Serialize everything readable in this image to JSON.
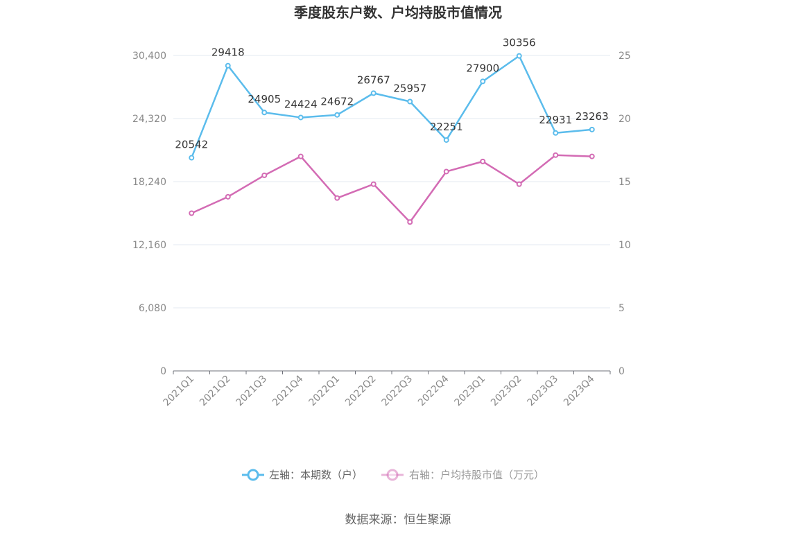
{
  "chart_data": {
    "type": "line",
    "title": "季度股东户数、户均持股市值情况",
    "categories": [
      "2021Q1",
      "2021Q2",
      "2021Q3",
      "2021Q4",
      "2022Q1",
      "2022Q2",
      "2022Q3",
      "2022Q4",
      "2023Q1",
      "2023Q2",
      "2023Q3",
      "2023Q4"
    ],
    "left_axis": {
      "ticks": [
        "0",
        "6,080",
        "12,160",
        "18,240",
        "24,320",
        "30,400"
      ],
      "min": 0,
      "max": 30400
    },
    "right_axis": {
      "ticks": [
        "0",
        "5",
        "10",
        "15",
        "20",
        "25"
      ],
      "min": 0,
      "max": 25
    },
    "series": [
      {
        "name": "左轴：本期数（户）",
        "axis": "left",
        "color": "#5bbcec",
        "values": [
          20542,
          29418,
          24905,
          24424,
          24672,
          26767,
          25957,
          22251,
          27900,
          30356,
          22931,
          23263
        ],
        "labels": [
          "20542",
          "29418",
          "24905",
          "24424",
          "24672",
          "26767",
          "25957",
          "22251",
          "27900",
          "30356",
          "22931",
          "23263"
        ]
      },
      {
        "name": "右轴：户均持股市值（万元）",
        "axis": "right",
        "color": "#d36bb4",
        "values": [
          12.5,
          13.8,
          15.5,
          17.0,
          13.7,
          14.8,
          11.8,
          15.8,
          16.6,
          14.8,
          17.1,
          17.0
        ]
      }
    ],
    "grid": true,
    "legend_position": "bottom"
  },
  "source_text": "数据来源：恒生聚源"
}
